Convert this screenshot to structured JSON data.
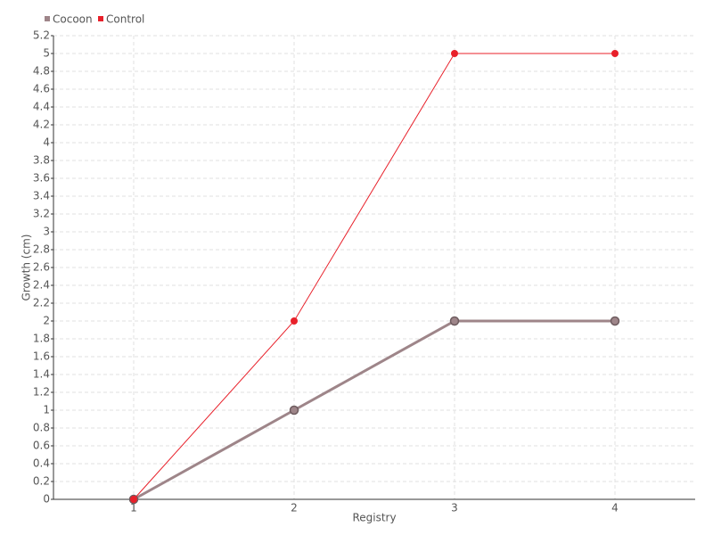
{
  "chart_data": {
    "type": "line",
    "x_label": "Registry",
    "y_label": "Growth (cm)",
    "categories": [
      "1",
      "2",
      "3",
      "4"
    ],
    "series": [
      {
        "name": "Cocoon",
        "color": "#9e8589",
        "values": [
          0,
          1,
          2,
          2
        ]
      },
      {
        "name": "Control",
        "color": "#e8202a",
        "values": [
          0,
          2,
          5,
          5
        ]
      }
    ],
    "ylim": [
      0,
      5.2
    ],
    "yticks": [
      0,
      0.2,
      0.4,
      0.6,
      0.8,
      1,
      1.2,
      1.4,
      1.6,
      1.8,
      2,
      2.2,
      2.4,
      2.6,
      2.8,
      3,
      3.2,
      3.4,
      3.6,
      3.8,
      4,
      4.2,
      4.4,
      4.6,
      4.8,
      5,
      5.2
    ],
    "grid": true,
    "legend": "top-left"
  }
}
